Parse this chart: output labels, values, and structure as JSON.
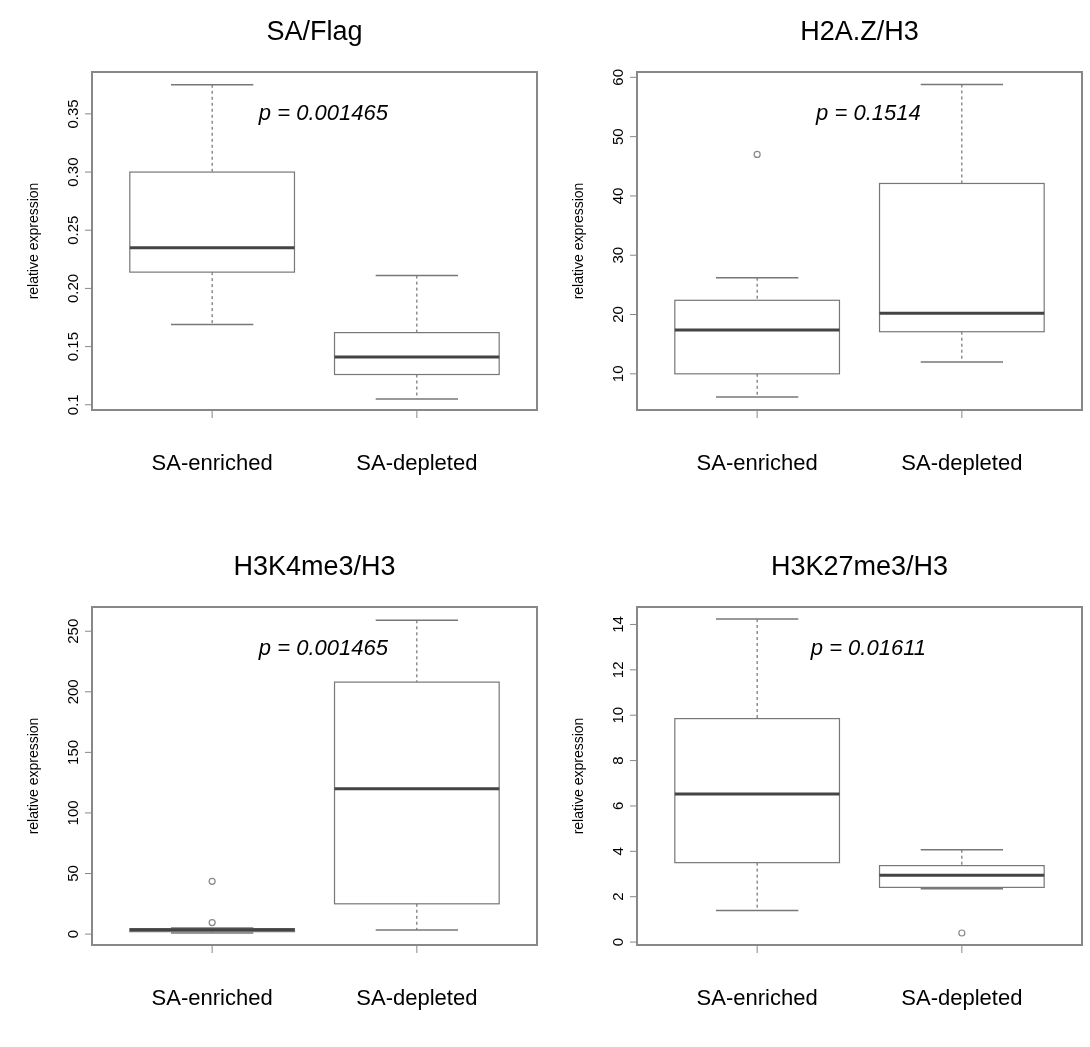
{
  "chart_data": [
    {
      "type": "box",
      "title": "SA/Flag",
      "ylabel": "relative expression",
      "categories": [
        "SA-enriched",
        "SA-depleted"
      ],
      "boxes": [
        {
          "low": 0.169,
          "q1": 0.214,
          "median": 0.235,
          "q3": 0.3,
          "high": 0.375
        },
        {
          "low": 0.105,
          "q1": 0.126,
          "median": 0.141,
          "q3": 0.162,
          "high": 0.211
        }
      ],
      "ylim": [
        0.0955,
        0.386
      ],
      "yticks": [
        0.1,
        0.15,
        {
          "value": 0.2,
          "label": "0.20"
        },
        0.25,
        {
          "value": 0.3,
          "label": "0.30"
        },
        0.35
      ],
      "annotations": [
        "p = 0.001465"
      ]
    },
    {
      "type": "box",
      "title": "H2A.Z/H3",
      "ylabel": "relative expression",
      "categories": [
        "SA-enriched",
        "SA-depleted"
      ],
      "boxes": [
        {
          "low": 6.1,
          "q1": 10,
          "median": 17.4,
          "q3": 22.4,
          "high": 26.2,
          "outliers": [
            47
          ]
        },
        {
          "low": 12,
          "q1": 17.1,
          "median": 20.2,
          "q3": 42.1,
          "high": 58.8
        }
      ],
      "ylim": [
        3.9,
        60.9
      ],
      "yticks": [
        10,
        20,
        30,
        40,
        50,
        60
      ],
      "annotations": [
        "p = 0.1514"
      ]
    },
    {
      "type": "box",
      "title": "H3K4me3/H3",
      "ylabel": "relative expression",
      "categories": [
        "SA-enriched",
        "SA-depleted"
      ],
      "boxes": [
        {
          "low": 1,
          "q1": 2,
          "median": 3.5,
          "q3": 4.5,
          "high": 5,
          "outliers": [
            9.5,
            43.6
          ]
        },
        {
          "low": 3.4,
          "q1": 25,
          "median": 120,
          "q3": 208,
          "high": 259
        }
      ],
      "ylim": [
        -9,
        270
      ],
      "yticks": [
        0,
        50,
        100,
        150,
        200,
        250
      ],
      "annotations": [
        "p = 0.001465"
      ]
    },
    {
      "type": "box",
      "title": "H3K27me3/H3",
      "ylabel": "relative expression",
      "categories": [
        "SA-enriched",
        "SA-depleted"
      ],
      "boxes": [
        {
          "low": 1.39,
          "q1": 3.5,
          "median": 6.53,
          "q3": 9.85,
          "high": 14.24
        },
        {
          "low": 2.35,
          "q1": 2.41,
          "median": 2.95,
          "q3": 3.37,
          "high": 4.07,
          "outliers": [
            0.4
          ]
        }
      ],
      "ylim": [
        -0.13,
        14.77
      ],
      "yticks": [
        0,
        2,
        4,
        6,
        8,
        10,
        12,
        14
      ],
      "annotations": [
        "p = 0.01611"
      ]
    }
  ]
}
